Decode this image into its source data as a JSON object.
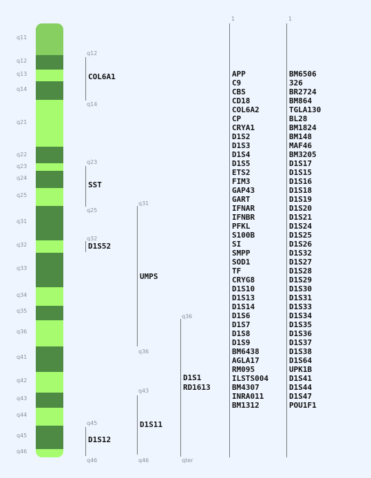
{
  "chromosome": {
    "colors": {
      "light": "#a6fb6e",
      "dark": "#4e8a44",
      "top": "#86cf60"
    },
    "bands": [
      {
        "name": "q11",
        "shade": "top"
      },
      {
        "name": "q12",
        "shade": "dark"
      },
      {
        "name": "q13",
        "shade": "light"
      },
      {
        "name": "q14",
        "shade": "dark"
      },
      {
        "name": "q21",
        "shade": "light"
      },
      {
        "name": "q22",
        "shade": "dark"
      },
      {
        "name": "q23",
        "shade": "light"
      },
      {
        "name": "q24",
        "shade": "dark"
      },
      {
        "name": "q25",
        "shade": "light"
      },
      {
        "name": "q31",
        "shade": "dark"
      },
      {
        "name": "q32",
        "shade": "light"
      },
      {
        "name": "q33",
        "shade": "dark"
      },
      {
        "name": "q34",
        "shade": "light"
      },
      {
        "name": "q35",
        "shade": "dark"
      },
      {
        "name": "q36",
        "shade": "light"
      },
      {
        "name": "q41",
        "shade": "dark"
      },
      {
        "name": "q42",
        "shade": "light"
      },
      {
        "name": "q43",
        "shade": "dark"
      },
      {
        "name": "q44",
        "shade": "light"
      },
      {
        "name": "q45",
        "shade": "dark"
      },
      {
        "name": "q46",
        "shade": "light"
      }
    ]
  },
  "loci": [
    {
      "name": "COL6A1",
      "from": "q12",
      "to": "q14"
    },
    {
      "name": "SST",
      "from": "q23",
      "to": "q25"
    },
    {
      "name": "D1S52",
      "from": "q32",
      "to": ""
    },
    {
      "name": "UMPS",
      "from": "q31",
      "to": "q36"
    },
    {
      "name": "D1S11",
      "from": "q43",
      "to": "q46"
    },
    {
      "name": "D1S12",
      "from": "q45",
      "to": "q46"
    },
    {
      "name": "D1S1\nRD1613",
      "from": "q36",
      "to": "qter"
    }
  ],
  "gene_columns": [
    {
      "header": "1",
      "genes": [
        "APP",
        "C9",
        "CBS",
        "CD18",
        "COL6A2",
        "CP",
        "CRYA1",
        "D1S2",
        "D1S3",
        "D1S4",
        "D1S5",
        "ETS2",
        "FIM3",
        "GAP43",
        "GART",
        "IFNAR",
        "IFNBR",
        "PFKL",
        "S100B",
        "SI",
        "SMPP",
        "SOD1",
        "TF",
        "CRYG8",
        "D1S10",
        "D1S13",
        "D1S14",
        "D1S6",
        "D1S7",
        "D1S8",
        "D1S9",
        "BM6438",
        "AGLA17",
        "RM095",
        "ILSTS004",
        "BM4307",
        "INRA011",
        "BM1312"
      ]
    },
    {
      "header": "1",
      "genes": [
        "BM6506",
        "326",
        "BR2724",
        "BM864",
        "TGLA130",
        "BL28",
        "BM1824",
        "BM148",
        "MAF46",
        "BM3205",
        "D1S17",
        "D1S15",
        "D1S16",
        "D1S18",
        "D1S19",
        "D1S20",
        "D1S21",
        "D1S24",
        "D1S25",
        "D1S26",
        "D1S32",
        "D1S27",
        "D1S28",
        "D1S29",
        "D1S30",
        "D1S31",
        "D1S33",
        "D1S34",
        "D1S35",
        "D1S36",
        "D1S37",
        "D1S38",
        "D1S64",
        "UPK1B",
        "D1S41",
        "D1S44",
        "D1S47",
        "POU1F1"
      ]
    }
  ]
}
